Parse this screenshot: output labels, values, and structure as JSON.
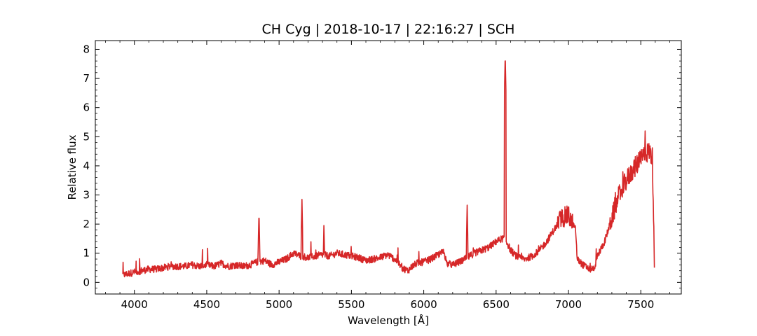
{
  "chart_data": {
    "type": "line",
    "title": "CH Cyg | 2018-10-17 | 22:16:27 | SCH",
    "xlabel": "Wavelength [Å]",
    "ylabel": "Relative flux",
    "xlim": [
      3730,
      7780
    ],
    "ylim": [
      -0.4,
      8.3
    ],
    "xticks": [
      4000,
      4500,
      5000,
      5500,
      6000,
      6500,
      7000,
      7500
    ],
    "yticks": [
      0,
      1,
      2,
      3,
      4,
      5,
      6,
      7,
      8
    ],
    "grid": false,
    "line_color": "#d62728",
    "series": [
      {
        "x": [
          3920,
          3960,
          4000,
          4050,
          4100,
          4150,
          4200,
          4250,
          4300,
          4350,
          4400,
          4450,
          4500,
          4550,
          4600,
          4650,
          4700,
          4750,
          4800,
          4850,
          4900,
          4950,
          5000,
          5050,
          5100,
          5150,
          5200,
          5250,
          5300,
          5350,
          5400,
          5450,
          5500,
          5550,
          5600,
          5650,
          5700,
          5750,
          5800,
          5850,
          5890,
          5920,
          5950,
          6000,
          6050,
          6100,
          6140,
          6160,
          6200,
          6250,
          6300,
          6350,
          6400,
          6450,
          6500,
          6540,
          6563,
          6600,
          6650,
          6700,
          6750,
          6800,
          6850,
          6900,
          6950,
          7000,
          7050,
          7060,
          7100,
          7150,
          7180,
          7200,
          7250,
          7300,
          7350,
          7400,
          7450,
          7500,
          7530,
          7560,
          7580,
          7590,
          7595
        ],
        "y": [
          0.25,
          0.3,
          0.35,
          0.4,
          0.45,
          0.45,
          0.5,
          0.55,
          0.55,
          0.55,
          0.6,
          0.55,
          0.6,
          0.55,
          0.65,
          0.55,
          0.6,
          0.55,
          0.6,
          0.7,
          0.75,
          0.6,
          0.7,
          0.8,
          1.0,
          0.9,
          0.85,
          0.9,
          0.95,
          0.9,
          1.0,
          0.95,
          0.9,
          0.85,
          0.75,
          0.8,
          0.85,
          0.95,
          0.8,
          0.5,
          0.4,
          0.55,
          0.65,
          0.7,
          0.8,
          0.95,
          1.05,
          0.65,
          0.6,
          0.7,
          0.85,
          1.0,
          1.1,
          1.2,
          1.4,
          1.5,
          1.5,
          1.1,
          0.85,
          0.8,
          0.9,
          1.1,
          1.4,
          1.8,
          2.2,
          2.3,
          1.8,
          0.8,
          0.6,
          0.45,
          0.5,
          0.9,
          1.4,
          2.2,
          3.0,
          3.5,
          3.9,
          4.2,
          4.4,
          4.5,
          4.3,
          2.0,
          0.0
        ]
      }
    ],
    "annotations": [
      {
        "x": 4861,
        "y": 2.45
      },
      {
        "x": 5158,
        "y": 2.85
      },
      {
        "x": 5310,
        "y": 1.95
      },
      {
        "x": 6300,
        "y": 2.65
      },
      {
        "x": 6563,
        "y": 7.85
      },
      {
        "x": 7530,
        "y": 5.2
      }
    ]
  }
}
